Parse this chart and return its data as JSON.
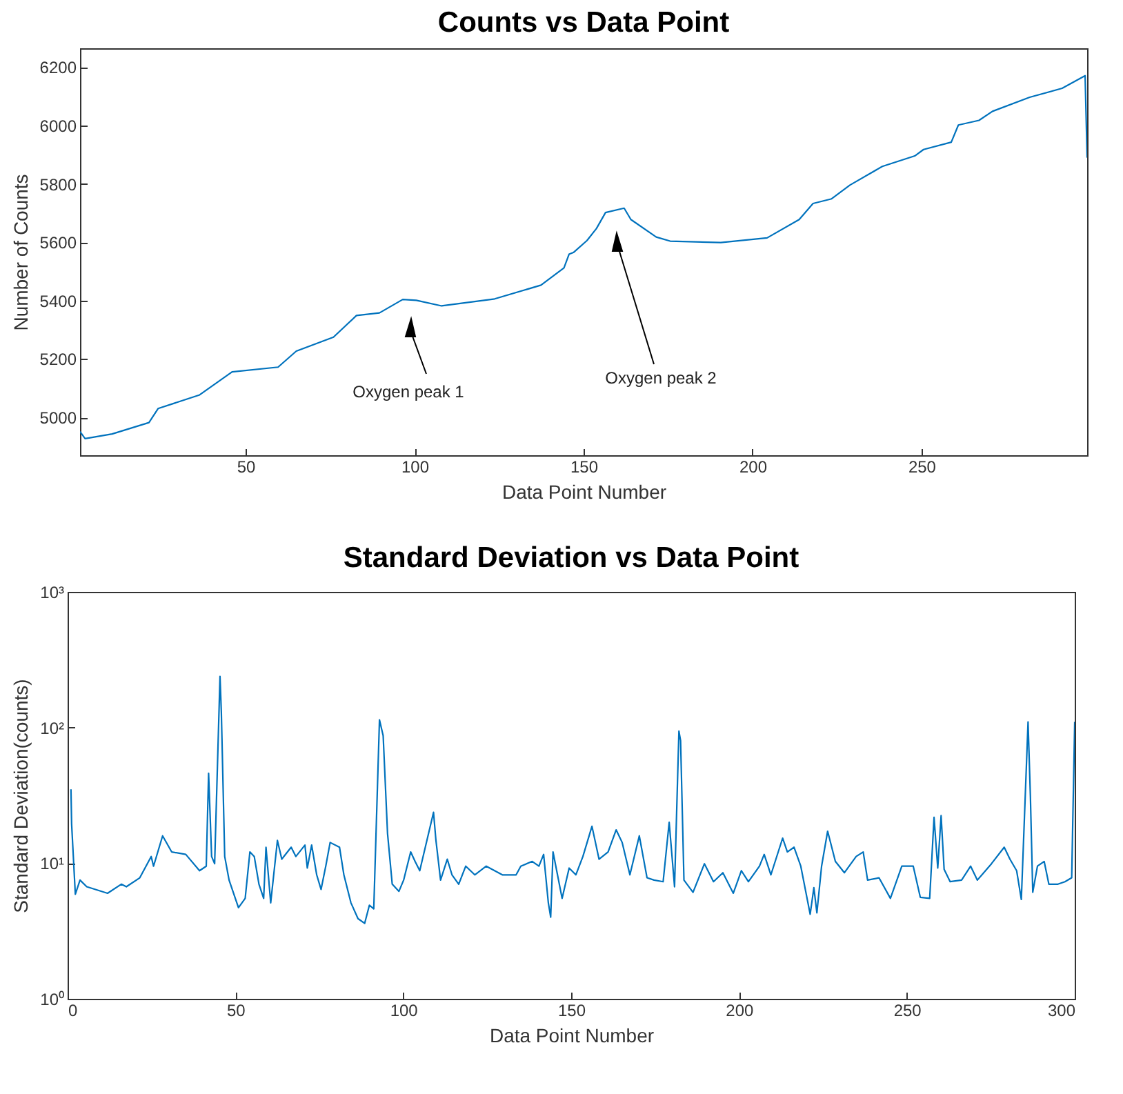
{
  "chart_data": [
    {
      "type": "line",
      "title": "Counts vs Data Point",
      "xlabel": "Data Point Number",
      "ylabel": "Number of Counts",
      "xlim": [
        1,
        299
      ],
      "xticks": [
        50,
        100,
        150,
        200,
        250
      ],
      "ylim": [
        4870,
        6265
      ],
      "yticks": [
        5000,
        5200,
        5400,
        5600,
        5800,
        6000,
        6200
      ],
      "series": [
        {
          "color": "#0072bd",
          "x": [
            1,
            2.5,
            10.5,
            21.4,
            24.1,
            36.4,
            46,
            59.6,
            65,
            76,
            82.8,
            89.6,
            96.5,
            100.5,
            108,
            123.7,
            137.4,
            144.2,
            145.7,
            147,
            151,
            153.8,
            156.5,
            162,
            164,
            171.5,
            175.6,
            190.6,
            204.3,
            213.8,
            217.9,
            223.4,
            228.8,
            238.4,
            248,
            250.6,
            258.8,
            260.9,
            267,
            271,
            282,
            291.6,
            298.4,
            299
          ],
          "values": [
            4951,
            4927,
            4943,
            4982,
            5030,
            5077,
            5156,
            5172,
            5227,
            5275,
            5349,
            5358,
            5404,
            5401,
            5382,
            5406,
            5453,
            5512,
            5559,
            5565,
            5606,
            5647,
            5702,
            5717,
            5678,
            5618,
            5604,
            5599,
            5615,
            5678,
            5733,
            5749,
            5796,
            5860,
            5896,
            5918,
            5943,
            6002,
            6018,
            6049,
            6097,
            6128,
            6171,
            5890
          ]
        }
      ],
      "annotations": [
        "Oxygen peak 1",
        "Oxygen peak 2"
      ]
    },
    {
      "type": "line",
      "title": "Standard Deviation vs Data Point",
      "xlabel": "Data Point Number",
      "ylabel": "Standard Deviation(counts)",
      "log": "y",
      "xlim": [
        0,
        300
      ],
      "xticks": [
        0,
        50,
        100,
        150,
        200,
        250,
        300
      ],
      "ylim": [
        1,
        1000
      ],
      "yticks": [
        {
          "value": 1,
          "label": "10⁰"
        },
        {
          "value": 10,
          "label": "10¹"
        },
        {
          "value": 100,
          "label": "10²"
        },
        {
          "value": 1000,
          "label": "10³"
        }
      ],
      "series": [
        {
          "color": "#0072bd",
          "x": [
            1,
            1.2,
            2.3,
            3.7,
            5.7,
            11.9,
            16,
            17.5,
            21.5,
            24.9,
            25.6,
            28.3,
            31,
            35.2,
            39.3,
            41.3,
            42,
            42.9,
            43.8,
            45.4,
            45.8,
            46.8,
            48.1,
            50.9,
            52.9,
            54.3,
            55.6,
            57,
            58.4,
            59.1,
            60.5,
            62.5,
            63.8,
            66.6,
            68,
            70.7,
            71.4,
            72.7,
            74.2,
            75.5,
            76.9,
            78.2,
            81,
            82.3,
            84.4,
            86.5,
            88.5,
            89.9,
            91.2,
            92.9,
            94,
            95.3,
            96.7,
            98.7,
            100.1,
            102.2,
            103.5,
            104.9,
            109,
            109.7,
            111.1,
            113.1,
            114.5,
            116.5,
            118.6,
            121.3,
            124.7,
            129.5,
            133.6,
            135,
            138.4,
            140.4,
            141.8,
            143.2,
            143.9,
            144.6,
            147.3,
            149.4,
            151.4,
            153.5,
            156.2,
            158.3,
            161,
            163.4,
            165.2,
            167.5,
            170.3,
            172.6,
            174.7,
            177.4,
            179.2,
            180.8,
            182.1,
            182.6,
            183.6,
            186.3,
            189.7,
            192.4,
            195.2,
            198.3,
            200.7,
            202.8,
            206.1,
            207.5,
            209.5,
            213,
            214.4,
            216.4,
            218.4,
            221.2,
            222.3,
            223.2,
            224.6,
            226.4,
            228.7,
            231.4,
            234.9,
            237,
            238.3,
            241.7,
            245.1,
            248.5,
            251.9,
            254,
            256.8,
            258.1,
            259.2,
            260.2,
            261.1,
            262.9,
            266.3,
            269,
            271,
            275.2,
            279,
            280.7,
            282.7,
            284.1,
            286.1,
            286.8,
            287.5,
            288.9,
            290.9,
            292.3,
            295,
            297.1,
            299.1,
            300
          ],
          "values": [
            35,
            19.4,
            5.9,
            7.5,
            6.7,
            6,
            7,
            6.7,
            7.8,
            11.2,
            9.5,
            15.9,
            12.1,
            11.6,
            8.8,
            9.5,
            46,
            11.2,
            9.9,
            238,
            129,
            11.2,
            7.5,
            4.7,
            5.5,
            12.1,
            11.2,
            7,
            5.5,
            13.1,
            5.1,
            14.7,
            10.7,
            13.1,
            11.2,
            13.6,
            9.2,
            13.6,
            8.2,
            6.4,
            9.5,
            14.2,
            13.1,
            8.2,
            5.1,
            3.9,
            3.6,
            4.9,
            4.6,
            114,
            87,
            16.6,
            7,
            6.2,
            7.5,
            12.1,
            10.3,
            8.8,
            23.7,
            14.9,
            7.5,
            10.7,
            8.2,
            7,
            9.5,
            8.2,
            9.5,
            8.2,
            8.2,
            9.5,
            10.3,
            9.5,
            11.6,
            5.1,
            4,
            12.1,
            5.5,
            9.2,
            8.2,
            11.2,
            18.7,
            10.7,
            12.1,
            17.6,
            14.2,
            8.2,
            15.9,
            7.8,
            7.5,
            7.3,
            20,
            6.7,
            94,
            80,
            7.5,
            6.1,
            9.9,
            7.3,
            8.5,
            6,
            8.8,
            7.3,
            9.5,
            11.6,
            8.2,
            15.3,
            12.1,
            13.1,
            9.5,
            4.2,
            6.6,
            4.3,
            9.5,
            17.2,
            10.3,
            8.5,
            11.2,
            12.1,
            7.5,
            7.8,
            5.5,
            9.5,
            9.5,
            5.6,
            5.5,
            21.8,
            9.2,
            22.4,
            9,
            7.3,
            7.5,
            9.5,
            7.5,
            9.9,
            13.1,
            10.7,
            8.8,
            5.4,
            110,
            31,
            6.1,
            9.5,
            10.3,
            7,
            7,
            7.3,
            7.8,
            110
          ]
        }
      ]
    }
  ]
}
